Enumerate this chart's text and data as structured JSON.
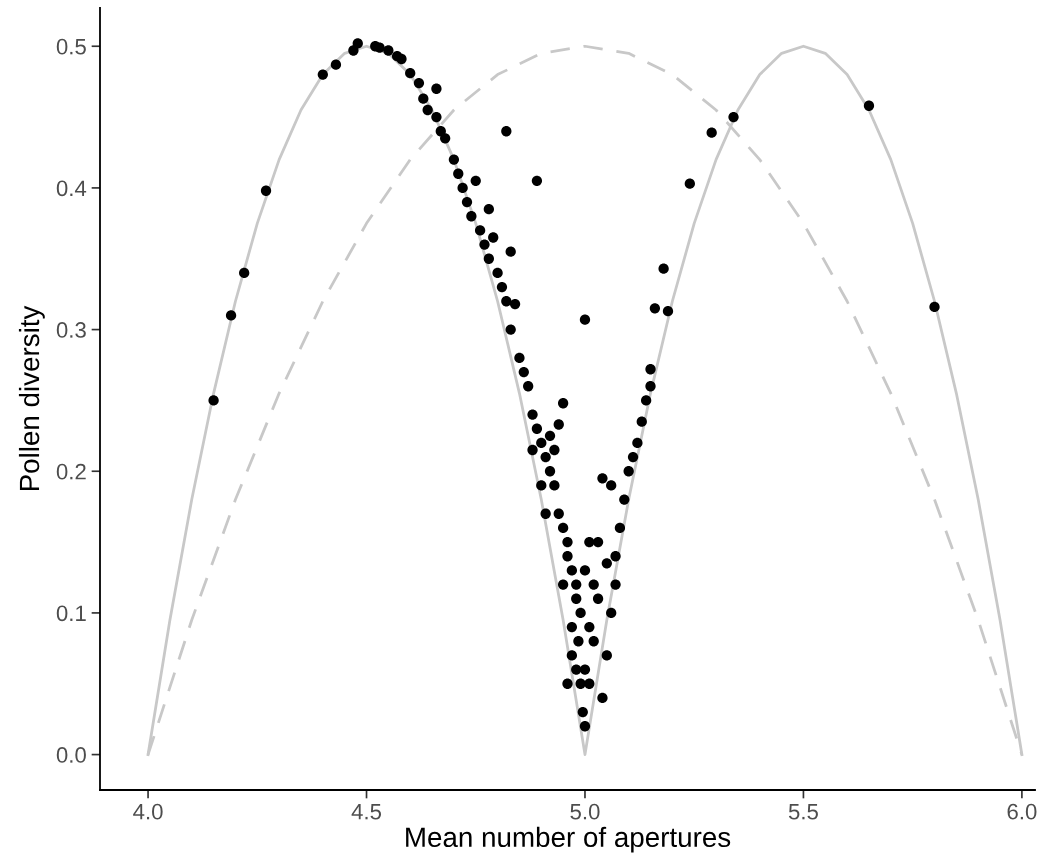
{
  "chart_data": {
    "type": "scatter",
    "xlabel": "Mean number of apertures",
    "ylabel": "Pollen diversity",
    "xlim": [
      3.89,
      6.03
    ],
    "ylim": [
      -0.025,
      0.527
    ],
    "xticks": [
      {
        "value": 4,
        "label": "4.0"
      },
      4.5,
      {
        "value": 5,
        "label": "5.0"
      },
      5.5,
      {
        "value": 6,
        "label": "6.0"
      }
    ],
    "yticks": [
      {
        "value": 0,
        "label": "0.0"
      },
      0.1,
      0.2,
      0.3,
      0.4,
      0.5
    ],
    "grid": false,
    "legend": false,
    "series": [
      {
        "type": "line",
        "line_style": "solid",
        "color": "#c8c8c8",
        "x": [
          4.0,
          4.05,
          4.1,
          4.15,
          4.2,
          4.25,
          4.3,
          4.35,
          4.4,
          4.45,
          4.5,
          4.55,
          4.6,
          4.65,
          4.7,
          4.75,
          4.8,
          4.85,
          4.9,
          4.95,
          5.0,
          5.05,
          5.1,
          5.15,
          5.2,
          5.25,
          5.3,
          5.35,
          5.4,
          5.45,
          5.5,
          5.55,
          5.6,
          5.65,
          5.7,
          5.75,
          5.8,
          5.85,
          5.9,
          5.95,
          6.0
        ],
        "values": [
          0,
          0.095,
          0.18,
          0.255,
          0.32,
          0.375,
          0.42,
          0.455,
          0.48,
          0.495,
          0.5,
          0.495,
          0.48,
          0.455,
          0.42,
          0.375,
          0.32,
          0.255,
          0.18,
          0.095,
          0,
          0.095,
          0.18,
          0.255,
          0.32,
          0.375,
          0.42,
          0.455,
          0.48,
          0.495,
          0.5,
          0.495,
          0.48,
          0.455,
          0.42,
          0.375,
          0.32,
          0.255,
          0.18,
          0.095,
          0
        ]
      },
      {
        "type": "line",
        "line_style": "dashed",
        "color": "#c8c8c8",
        "x": [
          4.0,
          4.1,
          4.2,
          4.3,
          4.4,
          4.5,
          4.6,
          4.7,
          4.8,
          4.9,
          5.0,
          5.1,
          5.2,
          5.3,
          5.4,
          5.5,
          5.6,
          5.7,
          5.8,
          5.9,
          6.0
        ],
        "values": [
          0,
          0.095,
          0.18,
          0.255,
          0.32,
          0.375,
          0.42,
          0.455,
          0.48,
          0.495,
          0.5,
          0.495,
          0.48,
          0.455,
          0.42,
          0.375,
          0.32,
          0.255,
          0.18,
          0.095,
          0
        ]
      },
      {
        "marker": "circle",
        "color": "#000000",
        "x": [
          4.15,
          4.19,
          4.22,
          4.27,
          4.4,
          4.43,
          4.47,
          4.48,
          4.52,
          4.53,
          4.55,
          4.57,
          4.58,
          4.6,
          4.62,
          4.63,
          4.64,
          4.66,
          4.66,
          4.67,
          4.68,
          4.7,
          4.71,
          4.72,
          4.73,
          4.75,
          4.74,
          4.76,
          4.77,
          4.78,
          4.78,
          4.79,
          4.8,
          4.81,
          4.82,
          4.82,
          4.83,
          4.83,
          4.84,
          4.85,
          4.86,
          4.87,
          4.88,
          4.89,
          4.89,
          4.9,
          4.91,
          4.92,
          4.93,
          4.94,
          4.95,
          4.94,
          4.95,
          4.96,
          4.97,
          4.98,
          4.985,
          4.99,
          4.995,
          5.0,
          5.0,
          5.0,
          5.01,
          5.02,
          5.03,
          5.04,
          5.05,
          5.06,
          5.07,
          5.04,
          5.06,
          5.08,
          5.09,
          5.1,
          5.11,
          5.12,
          5.13,
          5.14,
          5.15,
          5.16,
          5.15,
          5.18,
          5.19,
          5.24,
          5.29,
          5.34,
          5.65,
          5.8,
          4.96,
          4.97,
          4.98,
          4.99,
          5.0,
          5.01,
          5.02,
          4.97,
          4.98,
          5.03,
          4.95,
          4.96,
          5.01,
          4.93,
          4.92,
          4.9,
          4.91,
          4.88,
          5.05,
          5.07
        ],
        "values": [
          0.25,
          0.31,
          0.34,
          0.398,
          0.48,
          0.487,
          0.497,
          0.502,
          0.5,
          0.499,
          0.497,
          0.493,
          0.491,
          0.481,
          0.474,
          0.463,
          0.455,
          0.47,
          0.45,
          0.44,
          0.435,
          0.42,
          0.41,
          0.4,
          0.39,
          0.405,
          0.38,
          0.37,
          0.36,
          0.385,
          0.35,
          0.365,
          0.34,
          0.33,
          0.44,
          0.32,
          0.355,
          0.3,
          0.318,
          0.28,
          0.27,
          0.26,
          0.24,
          0.405,
          0.23,
          0.22,
          0.21,
          0.2,
          0.19,
          0.233,
          0.248,
          0.17,
          0.16,
          0.15,
          0.13,
          0.11,
          0.08,
          0.05,
          0.03,
          0.02,
          0.307,
          0.06,
          0.09,
          0.12,
          0.15,
          0.04,
          0.07,
          0.1,
          0.14,
          0.195,
          0.19,
          0.16,
          0.18,
          0.2,
          0.21,
          0.22,
          0.235,
          0.25,
          0.26,
          0.315,
          0.272,
          0.343,
          0.313,
          0.403,
          0.439,
          0.45,
          0.458,
          0.316,
          0.05,
          0.07,
          0.12,
          0.1,
          0.13,
          0.05,
          0.08,
          0.09,
          0.06,
          0.11,
          0.12,
          0.14,
          0.15,
          0.215,
          0.225,
          0.19,
          0.17,
          0.215,
          0.135,
          0.12
        ]
      }
    ]
  }
}
